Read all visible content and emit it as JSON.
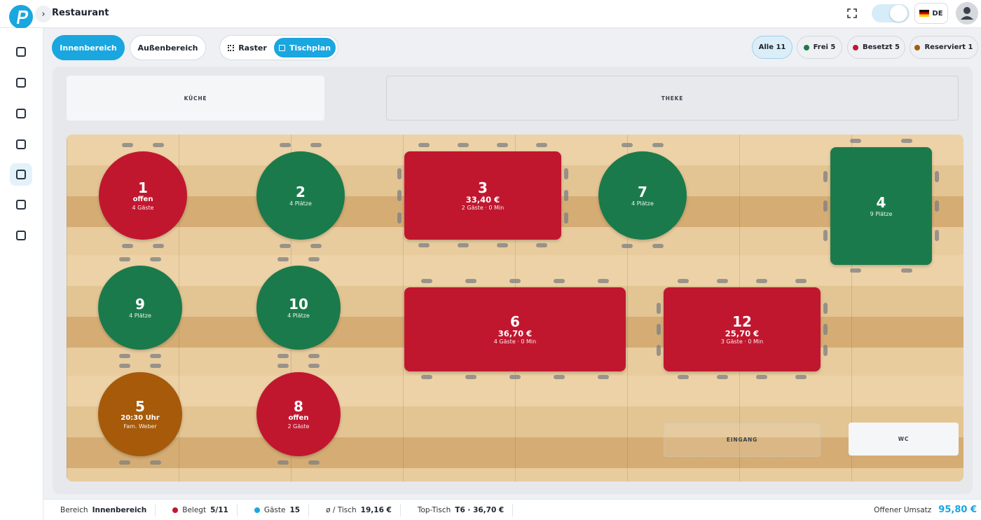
{
  "header": {
    "title": "Restaurant",
    "language": "DE"
  },
  "toolbar": {
    "areas": [
      "Innenbereich",
      "Außenbereich"
    ],
    "views": [
      "Raster",
      "Tischplan"
    ],
    "filters": [
      "Alle 11",
      "Frei 5",
      "Besetzt 5",
      "Reserviert 1"
    ]
  },
  "zones": [
    "KÜCHE",
    "THEKE",
    "EINGANG",
    "WC"
  ],
  "tables": [
    {
      "number": "1",
      "lines": [
        "offen",
        "4 Gäste"
      ],
      "color": "#c0172f"
    },
    {
      "number": "2",
      "lines": [
        "4 Plätze"
      ],
      "color": "#1b7a4b"
    },
    {
      "number": "3",
      "lines": [
        "33,40 €",
        "2 Gäste · 0 Min"
      ],
      "color": "#c0172f"
    },
    {
      "number": "7",
      "lines": [
        "4 Plätze"
      ],
      "color": "#1b7a4b"
    },
    {
      "number": "4",
      "lines": [
        "9 Plätze"
      ],
      "color": "#1b7a4b"
    },
    {
      "number": "9",
      "lines": [
        "4 Plätze"
      ],
      "color": "#1b7a4b"
    },
    {
      "number": "10",
      "lines": [
        "4 Plätze"
      ],
      "color": "#1b7a4b"
    },
    {
      "number": "6",
      "lines": [
        "36,70 €",
        "4 Gäste · 0 Min"
      ],
      "color": "#c0172f"
    },
    {
      "number": "12",
      "lines": [
        "25,70 €",
        "3 Gäste · 0 Min"
      ],
      "color": "#c0172f"
    },
    {
      "number": "5",
      "lines": [
        "20:30 Uhr",
        "Fam. Weber"
      ],
      "color": "#a65a0a"
    },
    {
      "number": "8",
      "lines": [
        "offen",
        "2 Gäste"
      ],
      "color": "#c0172f"
    }
  ],
  "footer": {
    "stats": [
      {
        "label": "Bereich",
        "value": "Innenbereich"
      },
      {
        "label": "Belegt",
        "value": "5/11"
      },
      {
        "label": "Gäste",
        "value": "15"
      },
      {
        "label": "ø / Tisch",
        "value": "19,16 €"
      },
      {
        "label": "Top-Tisch",
        "value": "T6 · 36,70 €"
      }
    ],
    "revenue": {
      "label": "Offener Umsatz",
      "value": "95,80 €"
    }
  }
}
